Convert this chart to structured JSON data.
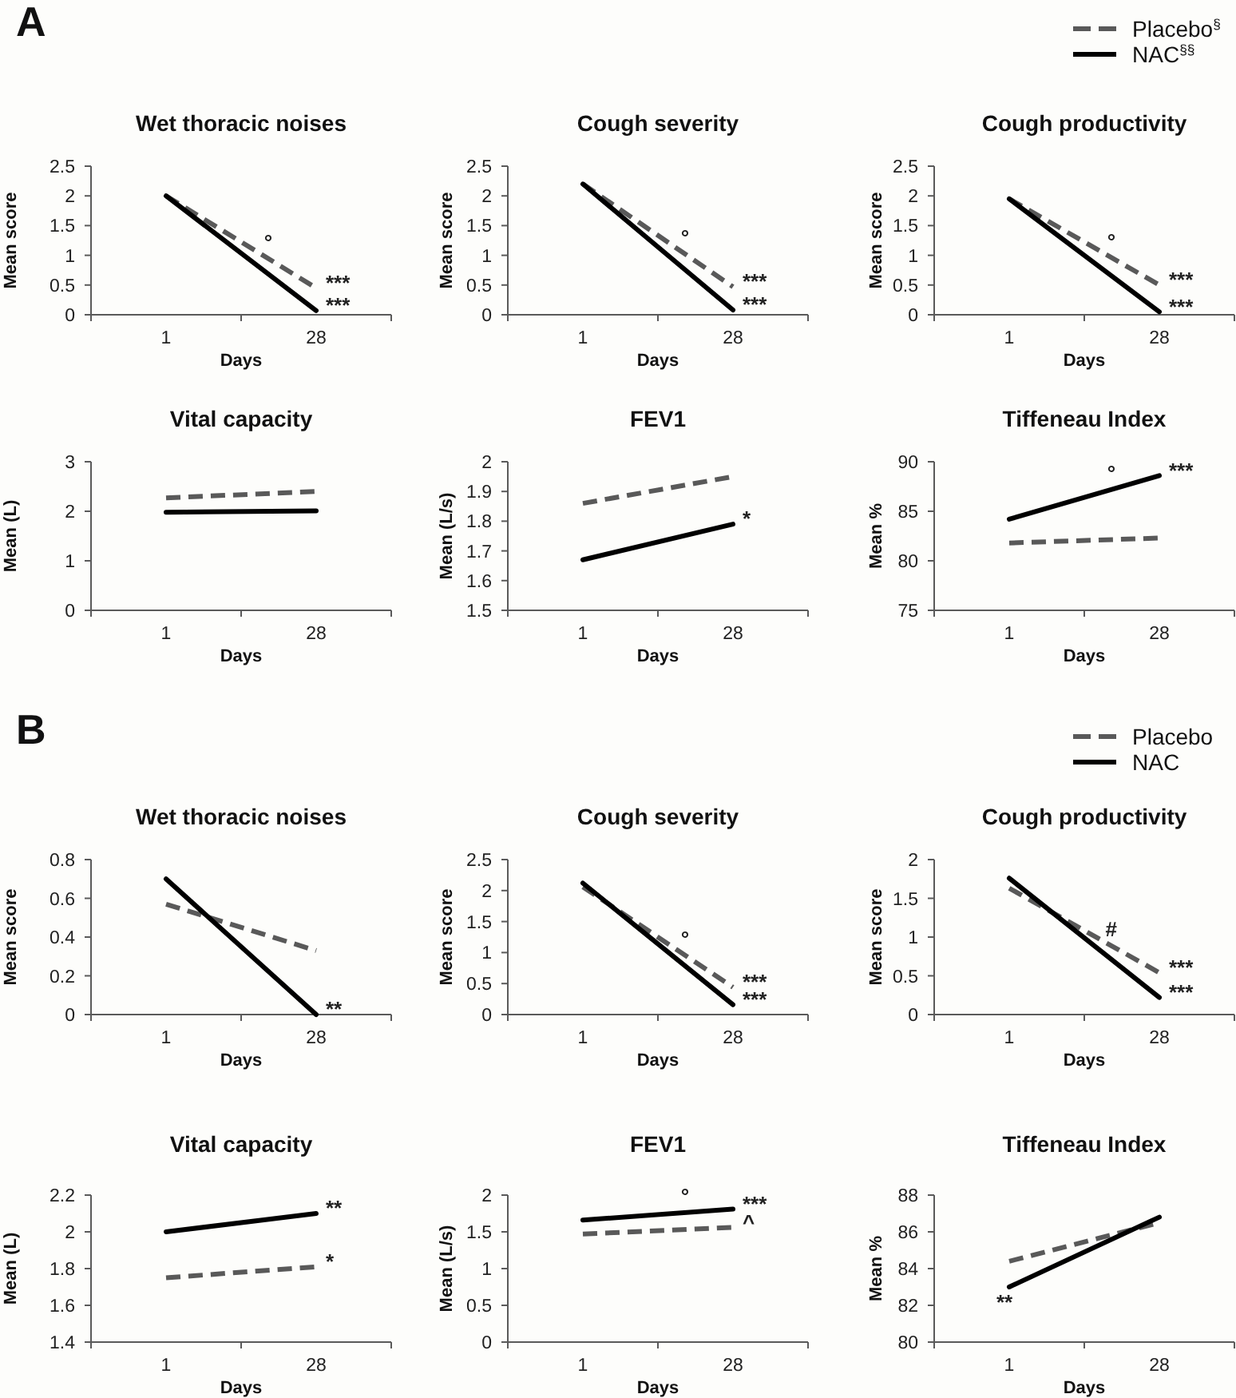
{
  "chart_data": [
    {
      "type": "line",
      "title": "Wet thoracic noises",
      "xlabel": "Days",
      "ylabel": "Mean score",
      "categories": [
        "1",
        "28"
      ],
      "ylim": [
        0,
        2.5
      ],
      "yticks": [
        0,
        0.5,
        1,
        1.5,
        2,
        2.5
      ],
      "series": [
        {
          "color": "#595959",
          "line_style": "dashed",
          "values": [
            2.0,
            0.45
          ]
        },
        {
          "color": "#000000",
          "line_style": "solid",
          "values": [
            2.0,
            0.07
          ]
        }
      ],
      "annotations": [
        "A",
        "°",
        {
          "text": "***",
          "x": "28",
          "y": 0.45
        },
        {
          "text": "***",
          "x": "28",
          "y": 0.07
        }
      ]
    },
    {
      "type": "line",
      "title": "Cough severity",
      "xlabel": "Days",
      "ylabel": "Mean score",
      "categories": [
        "1",
        "28"
      ],
      "ylim": [
        0,
        2.5
      ],
      "yticks": [
        0,
        0.5,
        1,
        1.5,
        2,
        2.5
      ],
      "series": [
        {
          "color": "#595959",
          "line_style": "dashed",
          "values": [
            2.2,
            0.47
          ]
        },
        {
          "color": "#000000",
          "line_style": "solid",
          "values": [
            2.2,
            0.08
          ]
        }
      ],
      "annotations": [
        "°",
        {
          "text": "***",
          "x": "28",
          "y": 0.47
        },
        {
          "text": "***",
          "x": "28",
          "y": 0.08
        }
      ]
    },
    {
      "type": "line",
      "title": "Cough productivity",
      "xlabel": "Days",
      "ylabel": "Mean score",
      "categories": [
        "1",
        "28"
      ],
      "ylim": [
        0,
        2.5
      ],
      "yticks": [
        0,
        0.5,
        1,
        1.5,
        2,
        2.5
      ],
      "legend": "top right",
      "series": [
        {
          "name": "Placebo$^{§}$",
          "color": "#595959",
          "line_style": "dashed",
          "values": [
            1.95,
            0.5
          ]
        },
        {
          "name": "NAC$^{§§}$",
          "color": "#000000",
          "line_style": "solid",
          "values": [
            1.95,
            0.05
          ]
        }
      ],
      "annotations": [
        "°",
        {
          "text": "***",
          "x": "28",
          "y": 0.5
        },
        {
          "text": "***",
          "x": "28",
          "y": 0.05
        }
      ]
    },
    {
      "type": "line",
      "title": "Vital capacity",
      "xlabel": "Days",
      "ylabel": "Mean (L)",
      "categories": [
        "1",
        "28"
      ],
      "ylim": [
        0,
        3
      ],
      "yticks": [
        0,
        1,
        2,
        3
      ],
      "series": [
        {
          "color": "#595959",
          "line_style": "dashed",
          "values": [
            2.27,
            2.4
          ]
        },
        {
          "color": "#000000",
          "line_style": "solid",
          "values": [
            1.98,
            2.01
          ]
        }
      ]
    },
    {
      "type": "line",
      "title": "FEV1",
      "xlabel": "Days",
      "ylabel": "Mean (L/s)",
      "categories": [
        "1",
        "28"
      ],
      "ylim": [
        1.5,
        2
      ],
      "yticks": [
        1.5,
        1.6,
        1.7,
        1.8,
        1.9,
        2
      ],
      "series": [
        {
          "color": "#595959",
          "line_style": "dashed",
          "values": [
            1.86,
            1.95
          ]
        },
        {
          "color": "#000000",
          "line_style": "solid",
          "values": [
            1.67,
            1.79
          ]
        }
      ],
      "annotations": [
        {
          "text": "*",
          "x": "28",
          "y": 1.79
        }
      ]
    },
    {
      "type": "line",
      "title": "Tiffeneau Index",
      "xlabel": "Days",
      "ylabel": "Mean %",
      "categories": [
        "1",
        "28"
      ],
      "ylim": [
        75,
        90
      ],
      "yticks": [
        75,
        80,
        85,
        90
      ],
      "series": [
        {
          "color": "#595959",
          "line_style": "dashed",
          "values": [
            81.8,
            82.3
          ]
        },
        {
          "color": "#000000",
          "line_style": "solid",
          "values": [
            84.2,
            88.6
          ]
        }
      ],
      "annotations": [
        "°",
        {
          "text": "***",
          "x": "28",
          "y": 88.6
        }
      ]
    },
    {
      "type": "line",
      "title": "Wet thoracic noises",
      "xlabel": "Days",
      "ylabel": "Mean score",
      "categories": [
        "1",
        "28"
      ],
      "ylim": [
        0,
        0.8
      ],
      "yticks": [
        0,
        0.2,
        0.4,
        0.6,
        0.8
      ],
      "series": [
        {
          "color": "#595959",
          "line_style": "dashed",
          "values": [
            0.57,
            0.33
          ]
        },
        {
          "color": "#000000",
          "line_style": "solid",
          "values": [
            0.7,
            0
          ]
        }
      ],
      "annotations": [
        "B",
        {
          "text": "**",
          "x": "28",
          "y": 0
        }
      ]
    },
    {
      "type": "line",
      "title": "Cough severity",
      "xlabel": "Days",
      "ylabel": "Mean score",
      "categories": [
        "1",
        "28"
      ],
      "ylim": [
        0,
        2.5
      ],
      "yticks": [
        0,
        0.5,
        1,
        1.5,
        2,
        2.5
      ],
      "series": [
        {
          "color": "#595959",
          "line_style": "dashed",
          "values": [
            2.06,
            0.44
          ]
        },
        {
          "color": "#000000",
          "line_style": "solid",
          "values": [
            2.12,
            0.16
          ]
        }
      ],
      "annotations": [
        "°",
        {
          "text": "***",
          "x": "28",
          "y": 0.44
        },
        {
          "text": "***",
          "x": "28",
          "y": 0.16
        }
      ]
    },
    {
      "type": "line",
      "title": "Cough productivity",
      "xlabel": "Days",
      "ylabel": "Mean score",
      "categories": [
        "1",
        "28"
      ],
      "ylim": [
        0,
        2
      ],
      "yticks": [
        0,
        0.5,
        1,
        1.5,
        2
      ],
      "legend": "top right",
      "series": [
        {
          "name": "Placebo",
          "color": "#595959",
          "line_style": "dashed",
          "values": [
            1.63,
            0.54
          ]
        },
        {
          "name": "NAC",
          "color": "#000000",
          "line_style": "solid",
          "values": [
            1.76,
            0.22
          ]
        }
      ],
      "annotations": [
        "#",
        {
          "text": "***",
          "x": "28",
          "y": 0.54
        },
        {
          "text": "***",
          "x": "28",
          "y": 0.22
        }
      ]
    },
    {
      "type": "line",
      "title": "Vital capacity",
      "xlabel": "Days",
      "ylabel": "Mean (L)",
      "categories": [
        "1",
        "28"
      ],
      "ylim": [
        1.4,
        2.2
      ],
      "yticks": [
        1.4,
        1.6,
        1.8,
        2,
        2.2
      ],
      "series": [
        {
          "color": "#595959",
          "line_style": "dashed",
          "values": [
            1.75,
            1.81
          ]
        },
        {
          "color": "#000000",
          "line_style": "solid",
          "values": [
            2.0,
            2.1
          ]
        }
      ],
      "annotations": [
        {
          "text": "**",
          "x": "28",
          "y": 2.1
        },
        {
          "text": "*",
          "x": "28",
          "y": 1.81
        }
      ]
    },
    {
      "type": "line",
      "title": "FEV1",
      "xlabel": "Days",
      "ylabel": "Mean (L/s)",
      "categories": [
        "1",
        "28"
      ],
      "ylim": [
        0,
        2
      ],
      "yticks": [
        0,
        0.5,
        1,
        1.5,
        2
      ],
      "series": [
        {
          "color": "#595959",
          "line_style": "dashed",
          "values": [
            1.47,
            1.56
          ]
        },
        {
          "color": "#000000",
          "line_style": "solid",
          "values": [
            1.66,
            1.81
          ]
        }
      ],
      "annotations": [
        "°",
        {
          "text": "***",
          "x": "28",
          "y": 1.81
        },
        {
          "text": "^",
          "x": "28",
          "y": 1.56
        }
      ]
    },
    {
      "type": "line",
      "title": "Tiffeneau Index",
      "xlabel": "Days",
      "ylabel": "Mean %",
      "categories": [
        "1",
        "28"
      ],
      "ylim": [
        80,
        88
      ],
      "yticks": [
        80,
        82,
        84,
        86,
        88
      ],
      "series": [
        {
          "color": "#595959",
          "line_style": "dashed",
          "values": [
            84.4,
            86.5
          ]
        },
        {
          "color": "#000000",
          "line_style": "solid",
          "values": [
            83,
            86.8
          ]
        }
      ],
      "annotations": [
        {
          "text": "**",
          "x": "1",
          "y": 83
        }
      ]
    }
  ]
}
